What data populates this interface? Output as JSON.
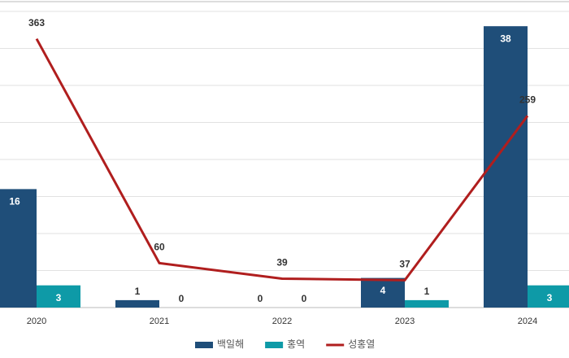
{
  "chart_data": {
    "type": "combo",
    "categories": [
      "2020",
      "2021",
      "2022",
      "2023",
      "2024"
    ],
    "series": [
      {
        "name": "백일해",
        "type": "bar",
        "color": "#1f4e79",
        "values": [
          16,
          1,
          0,
          4,
          38
        ]
      },
      {
        "name": "홍역",
        "type": "bar",
        "color": "#0e9aa7",
        "values": [
          3,
          0,
          0,
          1,
          3
        ]
      },
      {
        "name": "성홍열",
        "type": "line",
        "axis": "y2",
        "color": "#b01e1e",
        "values": [
          363,
          60,
          39,
          37,
          259
        ]
      }
    ],
    "ylim": [
      0,
      40
    ],
    "yticks": [
      0,
      5,
      10,
      15,
      20,
      25,
      30,
      35,
      40
    ],
    "y2lim": [
      0,
      400
    ],
    "grid": true
  }
}
